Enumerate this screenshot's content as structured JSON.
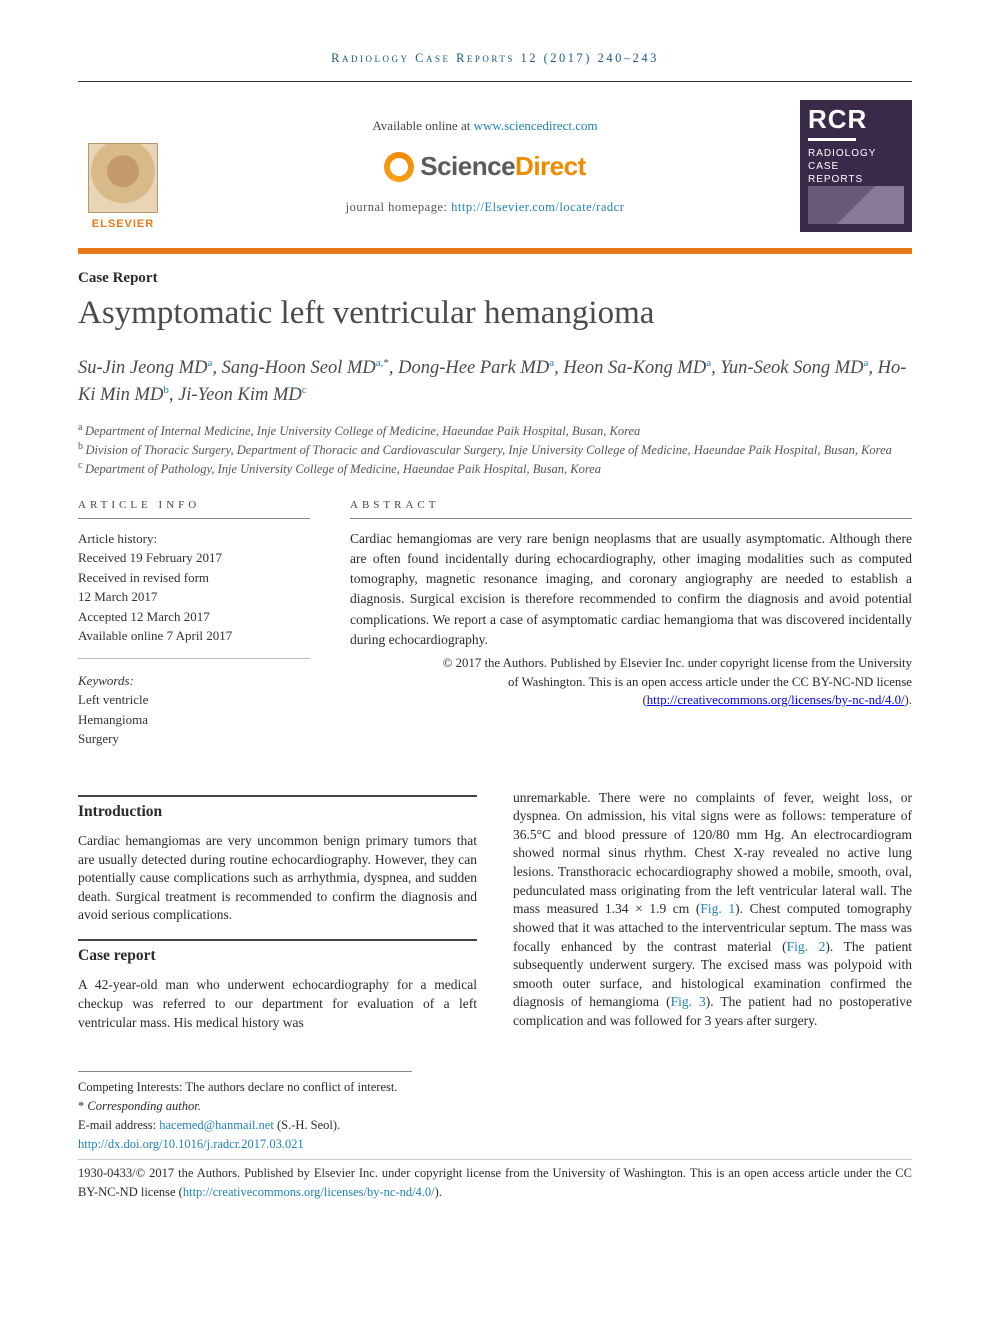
{
  "running_head": "Radiology Case Reports 12 (2017) 240–243",
  "masthead": {
    "available_prefix": "Available online at ",
    "available_link_text": "www.sciencedirect.com",
    "sd_logo_text_a": "Science",
    "sd_logo_text_b": "Direct",
    "homepage_prefix": "journal homepage: ",
    "homepage_link_text": "http://Elsevier.com/locate/radcr",
    "elsevier_word": "ELSEVIER",
    "rcr_big": "RCR",
    "rcr_sub1": "RADIOLOGY",
    "rcr_sub2": "CASE",
    "rcr_sub3": "REPORTS"
  },
  "article": {
    "section_label": "Case Report",
    "title": "Asymptomatic left ventricular hemangioma",
    "authors_html_parts": [
      {
        "name": "Su-Jin Jeong MD",
        "sup": "a"
      },
      {
        "name": "Sang-Hoon Seol MD",
        "sup": "a,",
        "ast": "*"
      },
      {
        "name": "Dong-Hee Park MD",
        "sup": "a"
      },
      {
        "name": "Heon Sa-Kong MD",
        "sup": "a"
      },
      {
        "name": "Yun-Seok Song MD",
        "sup": "a"
      },
      {
        "name": "Ho-Ki Min MD",
        "sup": "b"
      },
      {
        "name": "Ji-Yeon Kim MD",
        "sup": "c"
      }
    ],
    "affiliations": [
      {
        "sup": "a",
        "text": "Department of Internal Medicine, Inje University College of Medicine, Haeundae Paik Hospital, Busan, Korea"
      },
      {
        "sup": "b",
        "text": "Division of Thoracic Surgery, Department of Thoracic and Cardiovascular Surgery, Inje University College of Medicine, Haeundae Paik Hospital, Busan, Korea"
      },
      {
        "sup": "c",
        "text": "Department of Pathology, Inje University College of Medicine, Haeundae Paik Hospital, Busan, Korea"
      }
    ]
  },
  "info": {
    "head": "ARTICLE INFO",
    "history_label": "Article history:",
    "received": "Received 19 February 2017",
    "revised1": "Received in revised form",
    "revised2": "12 March 2017",
    "accepted": "Accepted 12 March 2017",
    "online": "Available online 7 April 2017",
    "keywords_label": "Keywords:",
    "kw1": "Left ventricle",
    "kw2": "Hemangioma",
    "kw3": "Surgery"
  },
  "abstract": {
    "head": "ABSTRACT",
    "text": "Cardiac hemangiomas are very rare benign neoplasms that are usually asymptomatic. Although there are often found incidentally during echocardiography, other imaging modalities such as computed tomography, magnetic resonance imaging, and coronary angiography are needed to establish a diagnosis. Surgical excision is therefore recommended to confirm the diagnosis and avoid potential complications. We report a case of asymptomatic cardiac hemangioma that was discovered incidentally during echocardiography.",
    "copyright_line1": "© 2017 the Authors. Published by Elsevier Inc. under copyright license from the University",
    "copyright_line2_a": "of Washington. This is an open access article under the CC BY-NC-ND license (",
    "copyright_link": "http://creativecommons.org/licenses/by-nc-nd/4.0/",
    "copyright_line2_b": ")."
  },
  "body": {
    "intro_head": "Introduction",
    "intro_text": "Cardiac hemangiomas are very uncommon benign primary tumors that are usually detected during routine echocardiography. However, they can potentially cause complications such as arrhythmia, dyspnea, and sudden death. Surgical treatment is recommended to confirm the diagnosis and avoid serious complications.",
    "case_head": "Case report",
    "case_p1": "A 42-year-old man who underwent echocardiography for a medical checkup was referred to our department for evaluation of a left ventricular mass. His medical history was",
    "case_p2a": "unremarkable. There were no complaints of fever, weight loss, or dyspnea. On admission, his vital signs were as follows: temperature of 36.5°C and blood pressure of 120/80 mm Hg. An electrocardiogram showed normal sinus rhythm. Chest X-ray revealed no active lung lesions. Transthoracic echocardiography showed a mobile, smooth, oval, pedunculated mass originating from the left ventricular lateral wall. The mass measured 1.34 × 1.9 cm (",
    "fig1": "Fig. 1",
    "case_p2b": "). Chest computed tomography showed that it was attached to the interventricular septum. The mass was focally enhanced by the contrast material (",
    "fig2": "Fig. 2",
    "case_p2c": "). The patient subsequently underwent surgery. The excised mass was polypoid with smooth outer surface, and histological examination confirmed the diagnosis of hemangioma (",
    "fig3": "Fig. 3",
    "case_p2d": "). The patient had no postoperative complication and was followed for 3 years after surgery."
  },
  "footnotes": {
    "competing": "Competing Interests: The authors declare no conflict of interest.",
    "corr_label": "Corresponding author.",
    "email_label": "E-mail address: ",
    "email": "hacemed@hanmail.net",
    "email_suffix": " (S.-H. Seol).",
    "doi_prefix": "http://dx.doi.org/",
    "doi": "10.1016/j.radcr.2017.03.021",
    "issn_line": "1930-0433/© 2017 the Authors. Published by Elsevier Inc. under copyright license from the University of Washington. This is an open access article under the CC BY-NC-ND license (",
    "issn_link": "http://creativecommons.org/licenses/by-nc-nd/4.0/",
    "issn_suffix": ")."
  },
  "colors": {
    "accent_orange": "#e67817",
    "link_blue": "#1f7fbf",
    "head_blue": "#1a5a8a",
    "rcr_bg": "#3a2a4a"
  }
}
